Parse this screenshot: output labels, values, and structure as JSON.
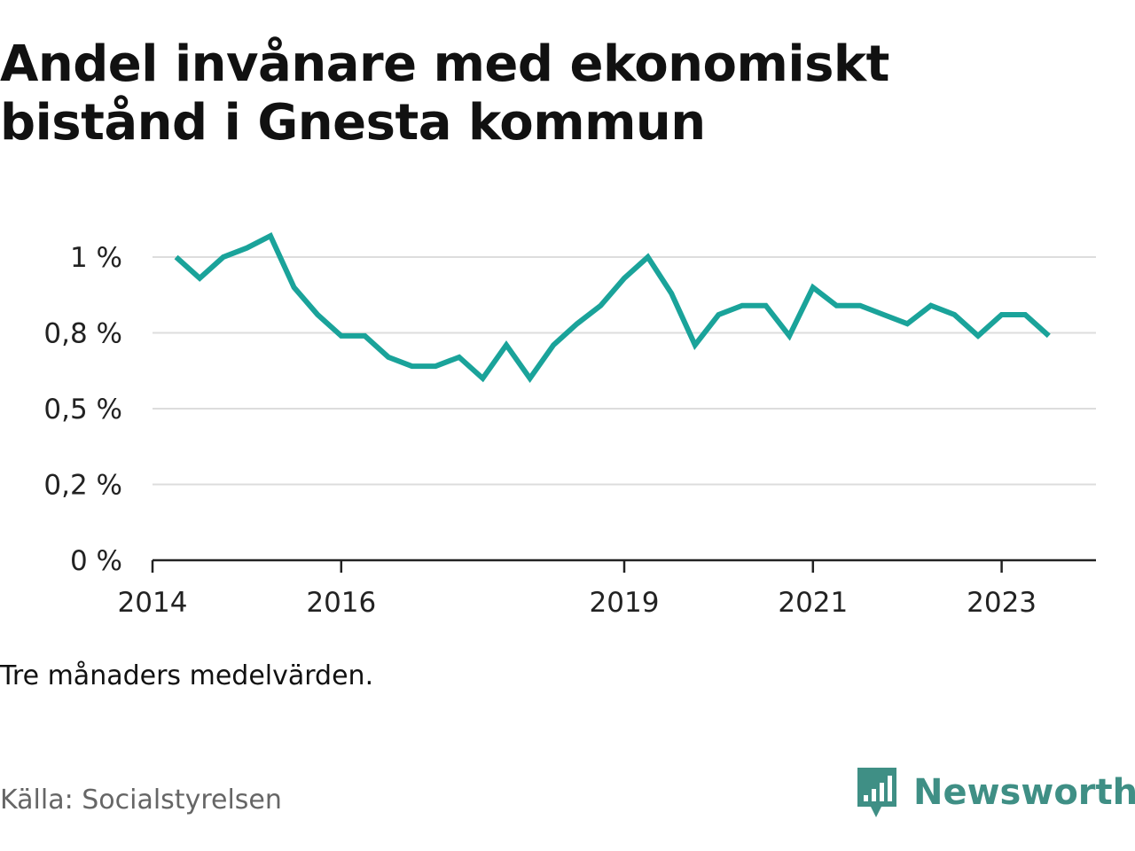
{
  "title_lines": [
    "Andel invånare med ekonomiskt",
    "bistånd i Gnesta kommun"
  ],
  "note": "Tre månaders medelvärden.",
  "source": "Källa: Socialstyrelsen",
  "brand": {
    "name": "Newsworthy",
    "icon": "newsworthy-logo-icon",
    "color": "#3f8f85"
  },
  "colors": {
    "line": "#1aa39a",
    "grid": "#dddddd",
    "axis": "#222222",
    "tick_text": "#222222"
  },
  "chart_data": {
    "type": "line",
    "x_ticks": [
      "2014",
      "2016",
      "2019",
      "2021",
      "2023"
    ],
    "y_ticks": [
      "0 %",
      "0,2 %",
      "0,5 %",
      "0,8 %",
      "1 %"
    ],
    "ylim": [
      0,
      1
    ],
    "xlim": [
      "2014-01",
      "2024-01"
    ],
    "grid": true,
    "series": [
      {
        "color": "#1aa39a",
        "x": [
          "2014-04",
          "2014-07",
          "2014-10",
          "2015-01",
          "2015-04",
          "2015-07",
          "2015-10",
          "2016-01",
          "2016-04",
          "2016-07",
          "2016-10",
          "2017-01",
          "2017-04",
          "2017-07",
          "2017-10",
          "2018-01",
          "2018-04",
          "2018-07",
          "2018-10",
          "2019-01",
          "2019-04",
          "2019-07",
          "2019-10",
          "2020-01",
          "2020-04",
          "2020-07",
          "2020-10",
          "2021-01",
          "2021-04",
          "2021-07",
          "2021-10",
          "2022-01",
          "2022-04",
          "2022-07",
          "2022-10",
          "2023-01",
          "2023-04",
          "2023-07"
        ],
        "values": [
          1.0,
          0.93,
          1.0,
          1.03,
          1.07,
          0.9,
          0.81,
          0.74,
          0.74,
          0.67,
          0.64,
          0.64,
          0.67,
          0.6,
          0.71,
          0.6,
          0.71,
          0.78,
          0.84,
          0.93,
          1.0,
          0.88,
          0.71,
          0.81,
          0.84,
          0.84,
          0.74,
          0.9,
          0.84,
          0.84,
          0.81,
          0.78,
          0.84,
          0.81,
          0.74,
          0.81,
          0.81,
          0.74
        ]
      }
    ]
  }
}
